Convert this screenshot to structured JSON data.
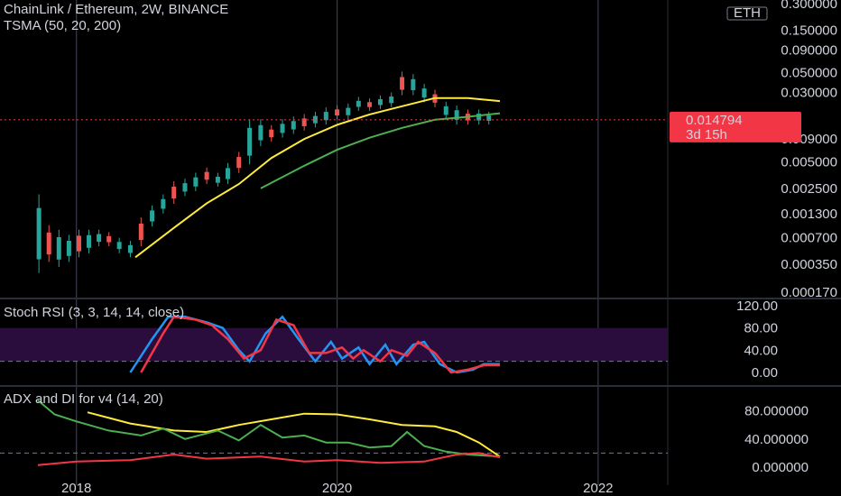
{
  "header": {
    "title": "ChainLink / Ethereum, 2W, BINANCE",
    "indicator": "TSMA (50, 20, 200)"
  },
  "price_badge": {
    "value": "0.014794",
    "countdown": "3d 15h"
  },
  "currency_badge": "ETH",
  "colors": {
    "background": "#000000",
    "up_candle": "#26a69a",
    "down_candle": "#ef5350",
    "yellow_ma": "#ffeb3b",
    "green_ma": "#4caf50",
    "stoch_k": "#2196f3",
    "stoch_d": "#f23645",
    "stoch_band": "#2a0d3d",
    "badge": "#f23645",
    "grid": "#2a2e39",
    "year_line": "#2a2e39"
  },
  "chart_data": [
    {
      "type": "candlestick",
      "pane": "price",
      "scale": "log",
      "title": "ChainLink / Ethereum, 2W, BINANCE",
      "y_ticks": [
        "0.300000",
        "0.150000",
        "0.090000",
        "0.050000",
        "0.030000",
        "0.009000",
        "0.005000",
        "0.002500",
        "0.001300",
        "0.000700",
        "0.000350",
        "0.000170"
      ],
      "y_range": [
        0.00015,
        0.3
      ],
      "last_price": 0.014794,
      "x_range": [
        "2017-09",
        "2022-06"
      ],
      "candles_approx": [
        [
          "2017-09-18",
          0.0003,
          0.002
        ],
        [
          "2017-10-16",
          0.0004,
          0.0009
        ],
        [
          "2017-11-13",
          0.00035,
          0.0008
        ],
        [
          "2017-12-11",
          0.0004,
          0.0007
        ],
        [
          "2018-01-08",
          0.00045,
          0.0008
        ],
        [
          "2018-02-05",
          0.0005,
          0.0008
        ],
        [
          "2018-03-05",
          0.0006,
          0.0008
        ],
        [
          "2018-04-02",
          0.0006,
          0.00075
        ],
        [
          "2018-05-01",
          0.0005,
          0.00065
        ],
        [
          "2018-06-01",
          0.00045,
          0.0006
        ],
        [
          "2018-07-01",
          0.0006,
          0.0011
        ],
        [
          "2018-08-01",
          0.001,
          0.0015
        ],
        [
          "2018-09-01",
          0.0014,
          0.002
        ],
        [
          "2018-10-01",
          0.0018,
          0.0028
        ],
        [
          "2018-11-01",
          0.0022,
          0.003
        ],
        [
          "2018-12-01",
          0.0025,
          0.0035
        ],
        [
          "2019-01-01",
          0.003,
          0.004
        ],
        [
          "2019-02-01",
          0.0028,
          0.0035
        ],
        [
          "2019-03-01",
          0.003,
          0.0045
        ],
        [
          "2019-04-01",
          0.004,
          0.006
        ],
        [
          "2019-05-01",
          0.005,
          0.014
        ],
        [
          "2019-06-01",
          0.008,
          0.014
        ],
        [
          "2019-07-01",
          0.009,
          0.012
        ],
        [
          "2019-08-01",
          0.01,
          0.014
        ],
        [
          "2019-09-01",
          0.011,
          0.015
        ],
        [
          "2019-10-01",
          0.012,
          0.016
        ],
        [
          "2019-11-01",
          0.013,
          0.017
        ],
        [
          "2019-12-01",
          0.014,
          0.019
        ],
        [
          "2020-01-01",
          0.016,
          0.02
        ],
        [
          "2020-02-01",
          0.016,
          0.021
        ],
        [
          "2020-03-01",
          0.02,
          0.025
        ],
        [
          "2020-04-01",
          0.02,
          0.024
        ],
        [
          "2020-05-01",
          0.021,
          0.026
        ],
        [
          "2020-06-01",
          0.022,
          0.028
        ],
        [
          "2020-07-01",
          0.03,
          0.048
        ],
        [
          "2020-08-01",
          0.03,
          0.045
        ],
        [
          "2020-09-01",
          0.025,
          0.035
        ],
        [
          "2020-10-01",
          0.022,
          0.03
        ],
        [
          "2020-11-01",
          0.016,
          0.022
        ],
        [
          "2020-12-01",
          0.014,
          0.02
        ],
        [
          "2021-01-01",
          0.014,
          0.018
        ],
        [
          "2021-02-01",
          0.014,
          0.018
        ],
        [
          "2021-03-01",
          0.014,
          0.017
        ]
      ],
      "series": [
        {
          "color": "yellow",
          "points": [
            [
              "2018-06-15",
              0.00042
            ],
            [
              "2018-10-01",
              0.0009
            ],
            [
              "2019-01-01",
              0.0017
            ],
            [
              "2019-04-01",
              0.0028
            ],
            [
              "2019-07-01",
              0.0055
            ],
            [
              "2019-10-01",
              0.009
            ],
            [
              "2020-01-01",
              0.013
            ],
            [
              "2020-04-01",
              0.017
            ],
            [
              "2020-07-01",
              0.021
            ],
            [
              "2020-10-01",
              0.026
            ],
            [
              "2021-01-01",
              0.026
            ],
            [
              "2021-04-01",
              0.024
            ]
          ]
        },
        {
          "color": "green",
          "points": [
            [
              "2019-06-01",
              0.0025
            ],
            [
              "2019-10-01",
              0.0045
            ],
            [
              "2020-01-01",
              0.0068
            ],
            [
              "2020-04-01",
              0.0093
            ],
            [
              "2020-07-01",
              0.012
            ],
            [
              "2020-10-01",
              0.0148
            ],
            [
              "2021-01-01",
              0.016
            ],
            [
              "2021-04-01",
              0.0175
            ]
          ]
        }
      ]
    },
    {
      "type": "line",
      "pane": "oscillator",
      "title": "Stoch RSI (3, 3, 14, 14, close)",
      "y_ticks": [
        "120.00",
        "80.00",
        "40.00",
        "0.00"
      ],
      "y_range": [
        0,
        120
      ],
      "band": [
        20,
        80
      ],
      "series": [
        {
          "color": "blue",
          "points": [
            [
              "2018-06-01",
              0
            ],
            [
              "2018-08-01",
              60
            ],
            [
              "2018-09-15",
              100
            ],
            [
              "2018-11-01",
              100
            ],
            [
              "2019-01-01",
              90
            ],
            [
              "2019-02-15",
              80
            ],
            [
              "2019-04-01",
              40
            ],
            [
              "2019-05-01",
              20
            ],
            [
              "2019-06-15",
              70
            ],
            [
              "2019-08-01",
              100
            ],
            [
              "2019-09-15",
              60
            ],
            [
              "2019-11-01",
              20
            ],
            [
              "2019-12-15",
              55
            ],
            [
              "2020-01-15",
              25
            ],
            [
              "2020-03-01",
              45
            ],
            [
              "2020-04-01",
              15
            ],
            [
              "2020-05-15",
              50
            ],
            [
              "2020-06-15",
              15
            ],
            [
              "2020-08-01",
              50
            ],
            [
              "2020-09-01",
              55
            ],
            [
              "2020-10-15",
              15
            ],
            [
              "2020-12-01",
              0
            ],
            [
              "2021-01-15",
              5
            ],
            [
              "2021-02-15",
              15
            ],
            [
              "2021-04-01",
              15
            ]
          ]
        },
        {
          "color": "red",
          "points": [
            [
              "2018-07-01",
              0
            ],
            [
              "2018-09-01",
              70
            ],
            [
              "2018-10-01",
              100
            ],
            [
              "2018-12-01",
              95
            ],
            [
              "2019-01-15",
              85
            ],
            [
              "2019-03-01",
              60
            ],
            [
              "2019-04-15",
              25
            ],
            [
              "2019-06-01",
              40
            ],
            [
              "2019-07-15",
              95
            ],
            [
              "2019-09-01",
              85
            ],
            [
              "2019-10-15",
              35
            ],
            [
              "2019-12-01",
              35
            ],
            [
              "2020-01-15",
              45
            ],
            [
              "2020-02-15",
              25
            ],
            [
              "2020-03-15",
              40
            ],
            [
              "2020-05-01",
              20
            ],
            [
              "2020-06-01",
              40
            ],
            [
              "2020-07-15",
              30
            ],
            [
              "2020-08-15",
              55
            ],
            [
              "2020-10-01",
              35
            ],
            [
              "2020-11-15",
              0
            ],
            [
              "2021-01-01",
              5
            ],
            [
              "2021-02-15",
              13
            ],
            [
              "2021-04-01",
              13
            ]
          ]
        }
      ]
    },
    {
      "type": "line",
      "pane": "indicator",
      "title": "ADX and DI for v4 (14, 20)",
      "y_ticks": [
        "80.000000",
        "40.000000",
        "0.000000"
      ],
      "y_range": [
        0,
        100
      ],
      "dashed_level": 20,
      "series": [
        {
          "color": "yellow",
          "points": [
            [
              "2018-02-01",
              78
            ],
            [
              "2018-06-01",
              62
            ],
            [
              "2018-10-01",
              52
            ],
            [
              "2019-01-01",
              50
            ],
            [
              "2019-04-01",
              60
            ],
            [
              "2019-07-01",
              68
            ],
            [
              "2019-10-01",
              76
            ],
            [
              "2020-01-01",
              75
            ],
            [
              "2020-04-01",
              68
            ],
            [
              "2020-07-01",
              60
            ],
            [
              "2020-10-01",
              58
            ],
            [
              "2020-12-01",
              50
            ],
            [
              "2021-02-01",
              35
            ],
            [
              "2021-04-01",
              15
            ]
          ]
        },
        {
          "color": "green",
          "points": [
            [
              "2017-09-15",
              95
            ],
            [
              "2017-11-01",
              75
            ],
            [
              "2018-01-01",
              65
            ],
            [
              "2018-04-01",
              52
            ],
            [
              "2018-07-01",
              45
            ],
            [
              "2018-09-01",
              55
            ],
            [
              "2018-11-01",
              40
            ],
            [
              "2019-02-01",
              52
            ],
            [
              "2019-04-01",
              38
            ],
            [
              "2019-06-01",
              60
            ],
            [
              "2019-08-01",
              42
            ],
            [
              "2019-10-01",
              45
            ],
            [
              "2019-12-01",
              35
            ],
            [
              "2020-02-01",
              35
            ],
            [
              "2020-04-01",
              28
            ],
            [
              "2020-06-01",
              30
            ],
            [
              "2020-07-15",
              50
            ],
            [
              "2020-09-01",
              30
            ],
            [
              "2020-11-01",
              22
            ],
            [
              "2021-01-01",
              18
            ],
            [
              "2021-04-01",
              15
            ]
          ]
        },
        {
          "color": "red",
          "points": [
            [
              "2017-09-15",
              3
            ],
            [
              "2018-01-01",
              8
            ],
            [
              "2018-06-01",
              10
            ],
            [
              "2018-10-01",
              18
            ],
            [
              "2019-01-01",
              12
            ],
            [
              "2019-06-01",
              15
            ],
            [
              "2019-10-01",
              8
            ],
            [
              "2020-01-01",
              10
            ],
            [
              "2020-05-01",
              6
            ],
            [
              "2020-09-01",
              8
            ],
            [
              "2020-12-01",
              18
            ],
            [
              "2021-02-01",
              20
            ],
            [
              "2021-04-01",
              14
            ]
          ]
        }
      ]
    }
  ],
  "x_axis_labels": [
    "2018",
    "2020",
    "2022"
  ]
}
